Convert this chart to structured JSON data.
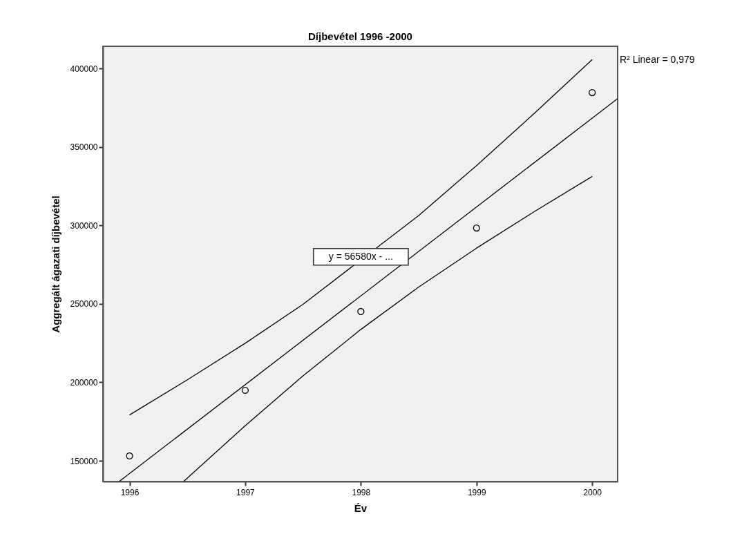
{
  "chart_data": {
    "type": "scatter",
    "title": "Díjbevétel 1996 -2000",
    "xlabel": "Év",
    "ylabel": "Aggregált ágazati díjbevétel",
    "xlim": [
      1995.77,
      2000.22
    ],
    "ylim": [
      136800,
      414100
    ],
    "xticks": [
      1996,
      1997,
      1998,
      1999,
      2000
    ],
    "yticks": [
      150000,
      200000,
      250000,
      300000,
      350000,
      400000
    ],
    "grid": false,
    "line_style": "solid",
    "series": [
      {
        "color": "#000000",
        "marker": "circle",
        "x": [
          1996,
          1997,
          1998,
          1999,
          2000
        ],
        "values": [
          153100,
          194900,
          245100,
          298300,
          384600
        ]
      },
      {
        "type": "line",
        "marker": "none",
        "color": "#000000",
        "x": [
          1995.91,
          2000.22
        ],
        "values": [
          136800,
          380800
        ]
      },
      {
        "type": "line",
        "marker": "none",
        "color": "#000000",
        "x": [
          1996,
          1996.5,
          1997,
          1997.5,
          1998.5,
          1999,
          1999.5,
          2000
        ],
        "values": [
          179200,
          201600,
          224900,
          249700,
          306300,
          338100,
          371400,
          405600
        ]
      },
      {
        "type": "line",
        "marker": "none",
        "color": "#000000",
        "x": [
          1996.47,
          1996.5,
          1997,
          1997.5,
          1998,
          1998.5,
          1999,
          1999.5,
          2000
        ],
        "values": [
          137000,
          139000,
          172300,
          204100,
          233700,
          260700,
          285500,
          308800,
          331200
        ]
      }
    ],
    "annotations": [
      {
        "text": "y = 56580x -  ...",
        "x": 1998,
        "y": 280000
      },
      "R² Linear = 0,979"
    ]
  }
}
